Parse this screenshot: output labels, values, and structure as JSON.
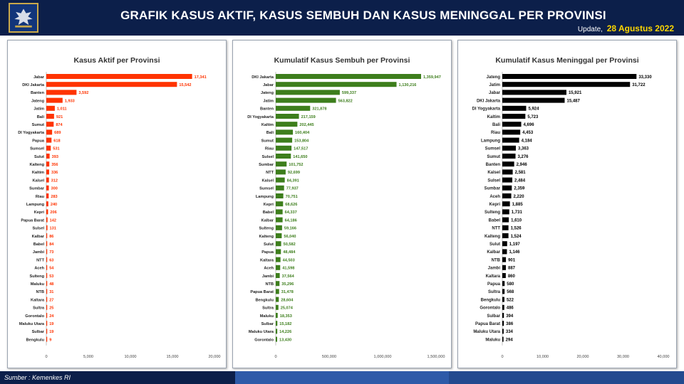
{
  "header": {
    "title": "GRAFIK KASUS AKTIF, KASUS SEMBUH DAN KASUS MENINGGAL PER PROVINSI",
    "update_label": "Update,",
    "update_date": "28 Agustus 2022",
    "logo_icon": "garuda-emblem-icon"
  },
  "footer": {
    "source": "Sumber : Kemenkes RI"
  },
  "colors": {
    "header_bg": "#0c1f4a",
    "aktif": "#ff3300",
    "sembuh": "#3d7e1c",
    "meninggal": "#000000"
  },
  "chart_data": [
    {
      "type": "bar",
      "orientation": "horizontal",
      "title": "Kasus Aktif per Provinsi",
      "color": "#ff3300",
      "xlim": [
        0,
        20000
      ],
      "xticks": [
        "0",
        "5,000",
        "10,000",
        "15,000",
        "20,000"
      ],
      "categories": [
        "Jabar",
        "DKI Jakarta",
        "Banten",
        "Jateng",
        "Jatim",
        "Bali",
        "Sumut",
        "DI Yogyakarta",
        "Papua",
        "Sumsel",
        "Sulut",
        "Kalteng",
        "Kaltim",
        "Kalsel",
        "Sumbar",
        "Riau",
        "Lampung",
        "Kepri",
        "Papua Barat",
        "Sulsel",
        "Kalbar",
        "Babel",
        "Jambi",
        "NTT",
        "Aceh",
        "Sulteng",
        "Maluku",
        "NTB",
        "Kaltara",
        "Sultra",
        "Gorontalo",
        "Maluku Utara",
        "Sulbar",
        "Bengkulu"
      ],
      "values": [
        17341,
        15542,
        3592,
        1933,
        1011,
        921,
        874,
        689,
        618,
        531,
        393,
        356,
        336,
        312,
        300,
        283,
        240,
        206,
        142,
        131,
        86,
        84,
        73,
        63,
        54,
        53,
        48,
        31,
        27,
        25,
        24,
        19,
        19,
        9
      ],
      "labels": [
        "17,341",
        "15,542",
        "3,592",
        "1,933",
        "1,011",
        "921",
        "874",
        "689",
        "618",
        "531",
        "393",
        "356",
        "336",
        "312",
        "300",
        "283",
        "240",
        "206",
        "142",
        "131",
        "86",
        "84",
        "73",
        "63",
        "54",
        "53",
        "48",
        "31",
        "27",
        "25",
        "24",
        "19",
        "19",
        "9"
      ]
    },
    {
      "type": "bar",
      "orientation": "horizontal",
      "title": "Kumulatif Kasus Sembuh per Provinsi",
      "color": "#3d7e1c",
      "xlim": [
        0,
        1500000
      ],
      "xticks": [
        "0",
        "500,000",
        "1,000,000",
        "1,500,000"
      ],
      "categories": [
        "DKI Jakarta",
        "Jabar",
        "Jateng",
        "Jatim",
        "Banten",
        "DI Yogyakarta",
        "Kaltim",
        "Bali",
        "Sumut",
        "Riau",
        "Sulsel",
        "Sumbar",
        "NTT",
        "Kalsel",
        "Sumsel",
        "Lampung",
        "Kepri",
        "Babel",
        "Kalbar",
        "Sulteng",
        "Kalteng",
        "Sulut",
        "Papua",
        "Kaltara",
        "Aceh",
        "Jambi",
        "NTB",
        "Papua Barat",
        "Bengkulu",
        "Sultra",
        "Maluku",
        "Sulbar",
        "Maluku Utara",
        "Gorontalo"
      ],
      "values": [
        1359947,
        1130216,
        599337,
        563822,
        321878,
        217159,
        202445,
        160404,
        153804,
        147517,
        141650,
        101752,
        92699,
        84391,
        77937,
        70751,
        68626,
        64337,
        64186,
        59166,
        56040,
        50582,
        48484,
        44503,
        41598,
        37564,
        35296,
        31478,
        28604,
        25074,
        18353,
        15182,
        14226,
        13430
      ],
      "labels": [
        "1,359,947",
        "1,130,216",
        "599,337",
        "563,822",
        "321,878",
        "217,159",
        "202,445",
        "160,404",
        "153,804",
        "147,517",
        "141,650",
        "101,752",
        "92,699",
        "84,391",
        "77,937",
        "70,751",
        "68,626",
        "64,337",
        "64,186",
        "59,166",
        "56,040",
        "50,582",
        "48,484",
        "44,503",
        "41,598",
        "37,564",
        "35,296",
        "31,478",
        "28,604",
        "25,074",
        "18,353",
        "15,182",
        "14,226",
        "13,430"
      ]
    },
    {
      "type": "bar",
      "orientation": "horizontal",
      "title": "Kumulatif Kasus Meninggal per Provinsi",
      "color": "#000000",
      "xlim": [
        0,
        40000
      ],
      "xticks": [
        "0",
        "10,000",
        "20,000",
        "30,000",
        "40,000"
      ],
      "categories": [
        "Jateng",
        "Jatim",
        "Jabar",
        "DKI Jakarta",
        "DI Yogyakarta",
        "Kaltim",
        "Bali",
        "Riau",
        "Lampung",
        "Sumsel",
        "Sumut",
        "Banten",
        "Kalsel",
        "Sulsel",
        "Sumbar",
        "Aceh",
        "Kepri",
        "Sulteng",
        "Babel",
        "NTT",
        "Kalteng",
        "Sulut",
        "Kalbar",
        "NTB",
        "Jambi",
        "Kaltara",
        "Papua",
        "Sultra",
        "Bengkulu",
        "Gorontalo",
        "Sulbar",
        "Papua Barat",
        "Maluku Utara",
        "Maluku"
      ],
      "values": [
        33330,
        31722,
        15921,
        15487,
        5924,
        5723,
        4696,
        4453,
        4184,
        3363,
        3276,
        2946,
        2581,
        2484,
        2359,
        2220,
        1885,
        1731,
        1610,
        1526,
        1524,
        1197,
        1146,
        901,
        887,
        860,
        580,
        568,
        522,
        486,
        394,
        386,
        334,
        294
      ],
      "labels": [
        "33,330",
        "31,722",
        "15,921",
        "15,487",
        "5,924",
        "5,723",
        "4,696",
        "4,453",
        "4,184",
        "3,363",
        "3,276",
        "2,946",
        "2,581",
        "2,484",
        "2,359",
        "2,220",
        "1,885",
        "1,731",
        "1,610",
        "1,526",
        "1,524",
        "1,197",
        "1,146",
        "901",
        "887",
        "860",
        "580",
        "568",
        "522",
        "486",
        "394",
        "386",
        "334",
        "294"
      ]
    }
  ]
}
